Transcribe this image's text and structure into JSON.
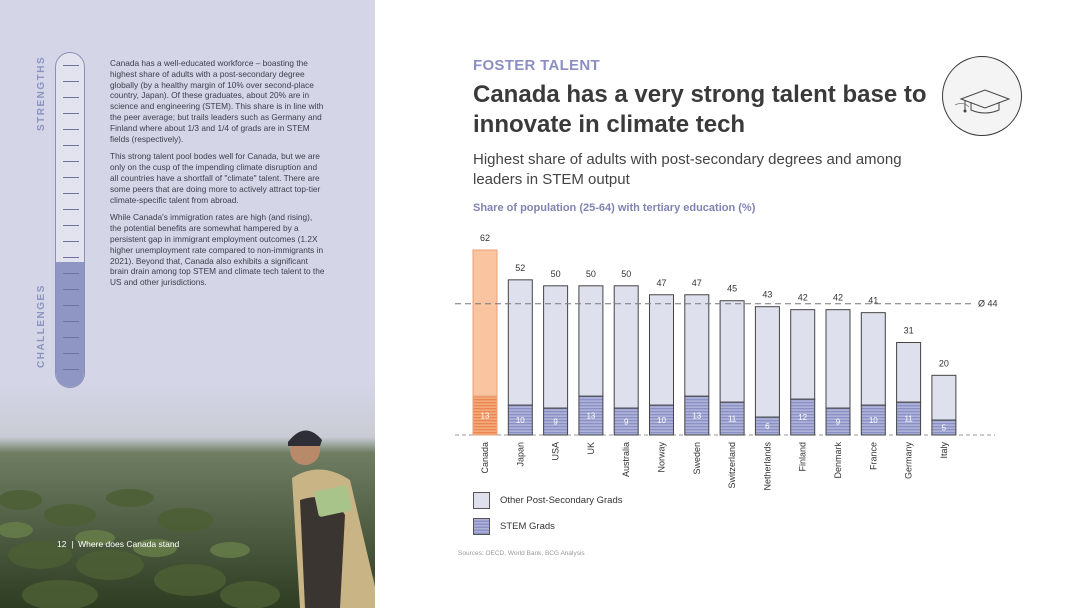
{
  "left": {
    "strengths_label": "STRENGTHS",
    "challenges_label": "CHALLENGES",
    "paragraphs": [
      "Canada has a well-educated workforce – boasting the highest share of adults with a post-secondary degree globally (by a healthy margin of 10% over second-place country, Japan). Of these graduates, about 20% are in science and engineering (STEM). This share is in line with the peer average; but trails leaders such as Germany and Finland where about 1/3 and 1/4 of grads are in STEM fields (respectively).",
      "This strong talent pool bodes well for Canada, but we are only on the cusp of the impending climate disruption and all countries have a shortfall of \"climate\" talent. There are some peers that are doing more to actively attract top-tier climate-specific talent from abroad.",
      "While Canada's immigration rates are high (and rising), the potential benefits are somewhat hampered by a persistent gap in immigrant employment outcomes (1.2X higher unemployment rate compared to non-immigrants in 2021). Beyond that, Canada also exhibits a significant brain drain among top STEM and climate tech talent to the US and other jurisdictions."
    ],
    "page_number": "12",
    "separator": "|",
    "page_caption": "Where does Canada stand"
  },
  "header": {
    "kicker": "FOSTER TALENT",
    "title": "Canada has a very strong talent base to innovate in climate tech",
    "subtitle": "Highest share of adults with post-secondary degrees and among leaders in STEM output",
    "badge_icon": "graduation-cap-icon"
  },
  "colors": {
    "highlight_total": "#f9c49f",
    "highlight_stem": "#f09a6a",
    "other_fill": "#dfe0ee",
    "stem_fill": "#9ba0cf",
    "accent": "#8b8fc1"
  },
  "chart_data": {
    "type": "bar",
    "title": "Share of population (25-64) with tertiary education (%)",
    "categories": [
      "Canada",
      "Japan",
      "USA",
      "UK",
      "Australia",
      "Norway",
      "Sweden",
      "Switzerland",
      "Netherlands",
      "Finland",
      "Denmark",
      "France",
      "Germany",
      "Italy"
    ],
    "totals": [
      62,
      52,
      50,
      50,
      50,
      47,
      47,
      45,
      43,
      42,
      42,
      41,
      31,
      20
    ],
    "series": [
      {
        "name": "STEM Grads",
        "values": [
          13,
          10,
          9,
          13,
          9,
          10,
          13,
          11,
          6,
          12,
          9,
          10,
          11,
          5
        ]
      },
      {
        "name": "Other Post-Secondary Grads",
        "values": [
          49,
          42,
          41,
          37,
          41,
          37,
          34,
          34,
          37,
          30,
          33,
          31,
          20,
          15
        ]
      }
    ],
    "average": {
      "label": "Ø 44",
      "value": 44
    },
    "highlight": "Canada",
    "ylim": [
      0,
      62
    ],
    "stacked": true
  },
  "legend": {
    "other_label": "Other Post-Secondary Grads",
    "stem_label": "STEM Grads"
  },
  "sources": "Sources: OECD, World Bank, BCG Analysis"
}
